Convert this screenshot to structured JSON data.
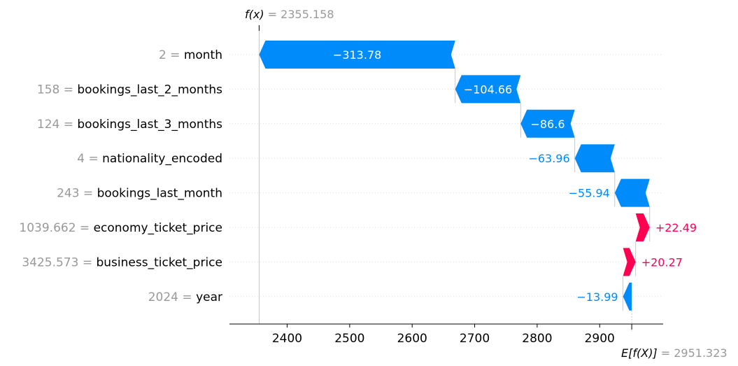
{
  "chart_data": {
    "type": "waterfall",
    "fx": {
      "label": "f(x)",
      "eq": "=",
      "value": "2355.158"
    },
    "efx": {
      "label": "E[f(X)]",
      "eq": "=",
      "value": "2951.323"
    },
    "base_value": 2951.323,
    "final_value": 2355.158,
    "xlim": [
      2320,
      2955
    ],
    "xticks": [
      2400,
      2500,
      2600,
      2700,
      2800,
      2900
    ],
    "features": [
      {
        "value_text": "2",
        "name": "month",
        "contribution": -313.78,
        "label": "−313.78"
      },
      {
        "value_text": "158",
        "name": "bookings_last_2_months",
        "contribution": -104.66,
        "label": "−104.66"
      },
      {
        "value_text": "124",
        "name": "bookings_last_3_months",
        "contribution": -86.6,
        "label": "−86.6"
      },
      {
        "value_text": "4",
        "name": "nationality_encoded",
        "contribution": -63.96,
        "label": "−63.96"
      },
      {
        "value_text": "243",
        "name": "bookings_last_month",
        "contribution": -55.94,
        "label": "−55.94"
      },
      {
        "value_text": "1039.662",
        "name": "economy_ticket_price",
        "contribution": 22.49,
        "label": "+22.49"
      },
      {
        "value_text": "3425.573",
        "name": "business_ticket_price",
        "contribution": 20.27,
        "label": "+20.27"
      },
      {
        "value_text": "2024",
        "name": "year",
        "contribution": -13.99,
        "label": "−13.99"
      }
    ],
    "colors": {
      "negative": "#008bfb",
      "positive": "#ff0051",
      "muted": "#999999"
    }
  }
}
